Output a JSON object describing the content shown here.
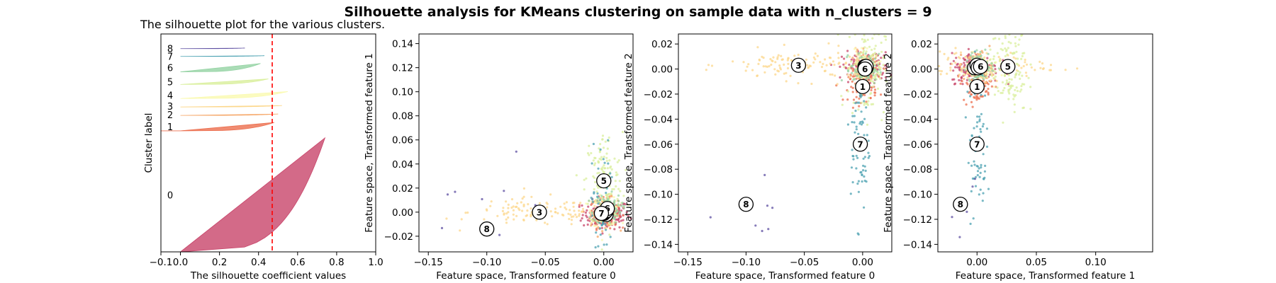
{
  "suptitle": "Silhouette analysis for KMeans clustering on sample data with n_clusters = 9",
  "chart_data": [
    {
      "type": "area",
      "title": "The silhouette plot for the various clusters.",
      "xlabel": "The silhouette coefficient values",
      "ylabel": "Cluster label",
      "xlim": [
        -0.1,
        1.0
      ],
      "xticks": [
        -0.1,
        0.0,
        0.2,
        0.4,
        0.6,
        0.8,
        1.0
      ],
      "xtick_labels": [
        "−0.1",
        "0.0",
        "0.2",
        "0.4",
        "0.6",
        "0.8",
        "1.0"
      ],
      "average_silhouette": 0.47,
      "grid": false,
      "clusters": [
        {
          "label": "0",
          "color": "#c8456a",
          "fill": 0.82,
          "max": 0.74,
          "min": 0.0
        },
        {
          "label": "1",
          "color": "#ec6f4f",
          "fill": 0.06,
          "max": 0.48,
          "min": -0.1
        },
        {
          "label": "2",
          "color": "#f6a666",
          "fill": 0.01,
          "max": 0.5,
          "min": 0.0
        },
        {
          "label": "3",
          "color": "#fcd78b",
          "fill": 0.01,
          "max": 0.52,
          "min": 0.0
        },
        {
          "label": "4",
          "color": "#fafab0",
          "fill": 0.05,
          "max": 0.55,
          "min": 0.0
        },
        {
          "label": "5",
          "color": "#d9ef9c",
          "fill": 0.04,
          "max": 0.45,
          "min": 0.0
        },
        {
          "label": "6",
          "color": "#95d3a4",
          "fill": 0.06,
          "max": 0.41,
          "min": 0.0
        },
        {
          "label": "7",
          "color": "#4ca2b2",
          "fill": 0.005,
          "max": 0.43,
          "min": 0.0
        },
        {
          "label": "8",
          "color": "#5e4fa2",
          "fill": 0.004,
          "max": 0.33,
          "min": 0.0
        }
      ]
    },
    {
      "type": "scatter",
      "xlabel": "Feature space, Transformed feature 0",
      "ylabel": "Feature space, Transformed feature 1",
      "xlim": [
        -0.158,
        0.025
      ],
      "ylim": [
        -0.033,
        0.148
      ],
      "xticks": [
        -0.15,
        -0.1,
        -0.05,
        0.0
      ],
      "xtick_labels": [
        "−0.15",
        "−0.10",
        "−0.05",
        "0.00"
      ],
      "yticks": [
        -0.02,
        0.0,
        0.02,
        0.04,
        0.06,
        0.08,
        0.1,
        0.12,
        0.14
      ],
      "ytick_labels": [
        "−0.02",
        "0.00",
        "0.02",
        "0.04",
        "0.06",
        "0.08",
        "0.10",
        "0.12",
        "0.14"
      ],
      "centers": [
        {
          "label": "0",
          "x": 0.002,
          "y": -0.002
        },
        {
          "label": "1",
          "x": 0.0,
          "y": -0.001
        },
        {
          "label": "2",
          "x": 0.001,
          "y": 0.0
        },
        {
          "label": "3",
          "x": -0.055,
          "y": 0.0
        },
        {
          "label": "4",
          "x": 0.002,
          "y": 0.001
        },
        {
          "label": "5",
          "x": 0.0,
          "y": 0.026
        },
        {
          "label": "6",
          "x": 0.003,
          "y": 0.003
        },
        {
          "label": "7",
          "x": -0.002,
          "y": -0.001
        },
        {
          "label": "8",
          "x": -0.1,
          "y": -0.014
        }
      ]
    },
    {
      "type": "scatter",
      "xlabel": "Feature space, Transformed feature 0",
      "ylabel": "Feature space, Transformed feature 2",
      "xlim": [
        -0.158,
        0.025
      ],
      "ylim": [
        -0.146,
        0.028
      ],
      "xticks": [
        -0.15,
        -0.1,
        -0.05,
        0.0
      ],
      "xtick_labels": [
        "−0.15",
        "−0.10",
        "−0.05",
        "0.00"
      ],
      "yticks": [
        -0.14,
        -0.12,
        -0.1,
        -0.08,
        -0.06,
        -0.04,
        -0.02,
        0.0,
        0.02
      ],
      "ytick_labels": [
        "−0.14",
        "−0.12",
        "−0.10",
        "−0.08",
        "−0.06",
        "−0.04",
        "−0.02",
        "0.00",
        "0.02"
      ],
      "centers": [
        {
          "label": "0",
          "x": 0.003,
          "y": 0.001
        },
        {
          "label": "1",
          "x": 0.0,
          "y": -0.014
        },
        {
          "label": "2",
          "x": 0.002,
          "y": 0.002
        },
        {
          "label": "3",
          "x": -0.055,
          "y": 0.003
        },
        {
          "label": "4",
          "x": 0.002,
          "y": 0.001
        },
        {
          "label": "5",
          "x": 0.003,
          "y": 0.002
        },
        {
          "label": "6",
          "x": 0.002,
          "y": 0.0
        },
        {
          "label": "7",
          "x": -0.002,
          "y": -0.06
        },
        {
          "label": "8",
          "x": -0.1,
          "y": -0.108
        }
      ]
    },
    {
      "type": "scatter",
      "xlabel": "Feature space, Transformed feature 1",
      "ylabel": "Feature space, Transformed feature 2",
      "xlim": [
        -0.033,
        0.148
      ],
      "ylim": [
        -0.146,
        0.028
      ],
      "xticks": [
        0.0,
        0.05,
        0.1
      ],
      "xtick_labels": [
        "0.00",
        "0.05",
        "0.10"
      ],
      "yticks": [
        -0.14,
        -0.12,
        -0.1,
        -0.08,
        -0.06,
        -0.04,
        -0.02,
        0.0,
        0.02
      ],
      "ytick_labels": [
        "−0.14",
        "−0.12",
        "−0.10",
        "−0.08",
        "−0.06",
        "−0.04",
        "−0.02",
        "0.00",
        "0.02"
      ],
      "centers": [
        {
          "label": "0",
          "x": -0.002,
          "y": 0.001
        },
        {
          "label": "1",
          "x": 0.0,
          "y": -0.014
        },
        {
          "label": "2",
          "x": 0.001,
          "y": 0.002
        },
        {
          "label": "3",
          "x": 0.0,
          "y": 0.003
        },
        {
          "label": "4",
          "x": 0.001,
          "y": 0.001
        },
        {
          "label": "5",
          "x": 0.026,
          "y": 0.002
        },
        {
          "label": "6",
          "x": 0.003,
          "y": 0.002
        },
        {
          "label": "7",
          "x": 0.0,
          "y": -0.06
        },
        {
          "label": "8",
          "x": -0.014,
          "y": -0.108
        }
      ]
    }
  ]
}
